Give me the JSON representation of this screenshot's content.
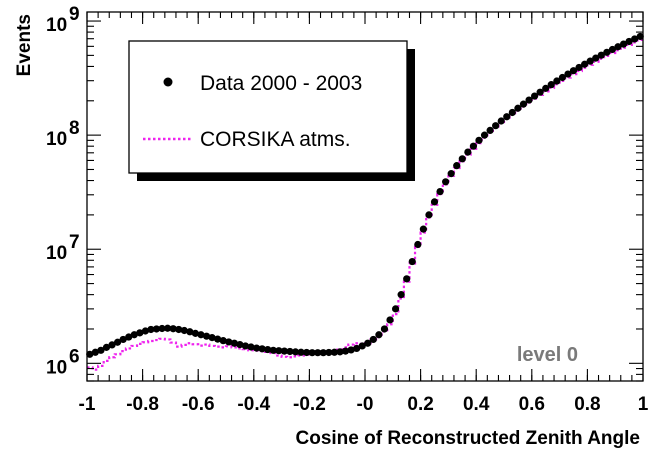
{
  "chart_data": {
    "type": "scatter",
    "xlabel": "Cosine of Reconstructed Zenith Angle",
    "ylabel": "Events",
    "xlim": [
      -1,
      1
    ],
    "ylim": [
      700000,
      1200000000
    ],
    "yscale": "log",
    "grid": false,
    "legend_position": "top-left",
    "x_tick_labels": [
      "-1",
      "-0.8",
      "-0.6",
      "-0.4",
      "-0.2",
      "-0",
      "0.2",
      "0.4",
      "0.6",
      "0.8",
      "1"
    ],
    "y_tick_labels": [
      {
        "value": 1000000,
        "base": "10",
        "exp": "6"
      },
      {
        "value": 10000000,
        "base": "10",
        "exp": "7"
      },
      {
        "value": 100000000,
        "base": "10",
        "exp": "8"
      },
      {
        "value": 1000000000,
        "base": "10",
        "exp": "9"
      }
    ],
    "annotation": "level 0",
    "series": [
      {
        "name": "Data 2000 - 2003",
        "style": "markers",
        "color": "#000000",
        "x": [
          -0.99,
          -0.97,
          -0.95,
          -0.93,
          -0.91,
          -0.89,
          -0.87,
          -0.85,
          -0.83,
          -0.81,
          -0.79,
          -0.77,
          -0.75,
          -0.73,
          -0.71,
          -0.69,
          -0.67,
          -0.65,
          -0.63,
          -0.61,
          -0.59,
          -0.57,
          -0.55,
          -0.53,
          -0.51,
          -0.49,
          -0.47,
          -0.45,
          -0.43,
          -0.41,
          -0.39,
          -0.37,
          -0.35,
          -0.33,
          -0.31,
          -0.29,
          -0.27,
          -0.25,
          -0.23,
          -0.21,
          -0.19,
          -0.17,
          -0.15,
          -0.13,
          -0.11,
          -0.09,
          -0.07,
          -0.05,
          -0.03,
          -0.01,
          0.01,
          0.03,
          0.05,
          0.07,
          0.09,
          0.11,
          0.13,
          0.15,
          0.17,
          0.19,
          0.21,
          0.23,
          0.25,
          0.27,
          0.29,
          0.31,
          0.33,
          0.35,
          0.37,
          0.39,
          0.41,
          0.43,
          0.45,
          0.47,
          0.49,
          0.51,
          0.53,
          0.55,
          0.57,
          0.59,
          0.61,
          0.63,
          0.65,
          0.67,
          0.69,
          0.71,
          0.73,
          0.75,
          0.77,
          0.79,
          0.81,
          0.83,
          0.85,
          0.87,
          0.89,
          0.91,
          0.93,
          0.95,
          0.97,
          0.99
        ],
        "y": [
          1200000,
          1250000,
          1300000,
          1380000,
          1450000,
          1530000,
          1620000,
          1700000,
          1780000,
          1850000,
          1920000,
          1980000,
          2000000,
          2020000,
          2030000,
          2010000,
          1980000,
          1940000,
          1890000,
          1830000,
          1780000,
          1730000,
          1680000,
          1630000,
          1580000,
          1540000,
          1500000,
          1460000,
          1420000,
          1390000,
          1360000,
          1340000,
          1320000,
          1300000,
          1290000,
          1280000,
          1270000,
          1260000,
          1250000,
          1245000,
          1240000,
          1240000,
          1240000,
          1245000,
          1250000,
          1260000,
          1280000,
          1310000,
          1350000,
          1420000,
          1500000,
          1620000,
          1780000,
          2000000,
          2400000,
          3000000,
          4000000,
          5500000,
          7800000,
          11000000,
          15000000,
          20000000,
          26000000,
          32000000,
          39000000,
          46000000,
          54000000,
          62000000,
          71000000,
          80000000,
          90000000,
          100000000,
          110000000,
          121000000,
          133000000,
          145000000,
          158000000,
          172000000,
          187000000,
          203000000,
          220000000,
          238000000,
          257000000,
          277000000,
          298000000,
          320000000,
          343000000,
          367000000,
          392000000,
          418000000,
          445000000,
          473000000,
          502000000,
          532000000,
          563000000,
          595000000,
          628000000,
          662000000,
          697000000,
          733000000
        ]
      },
      {
        "name": "CORSIKA atms.",
        "style": "dotted-step",
        "color": "#ee22ee",
        "x": [
          -0.99,
          -0.97,
          -0.95,
          -0.93,
          -0.91,
          -0.89,
          -0.87,
          -0.85,
          -0.83,
          -0.81,
          -0.79,
          -0.77,
          -0.75,
          -0.73,
          -0.71,
          -0.69,
          -0.67,
          -0.65,
          -0.63,
          -0.61,
          -0.59,
          -0.57,
          -0.55,
          -0.53,
          -0.51,
          -0.49,
          -0.47,
          -0.45,
          -0.43,
          -0.41,
          -0.39,
          -0.37,
          -0.35,
          -0.33,
          -0.31,
          -0.29,
          -0.27,
          -0.25,
          -0.23,
          -0.21,
          -0.19,
          -0.17,
          -0.15,
          -0.13,
          -0.11,
          -0.09,
          -0.07,
          -0.05,
          -0.03,
          -0.01,
          0.01,
          0.03,
          0.05,
          0.07,
          0.09,
          0.11,
          0.13,
          0.15,
          0.17,
          0.19,
          0.21,
          0.23,
          0.25,
          0.27,
          0.29,
          0.31,
          0.33,
          0.35,
          0.37,
          0.39,
          0.41,
          0.43,
          0.45,
          0.47,
          0.49,
          0.51,
          0.53,
          0.55,
          0.57,
          0.59,
          0.61,
          0.63,
          0.65,
          0.67,
          0.69,
          0.71,
          0.73,
          0.75,
          0.77,
          0.79,
          0.81,
          0.83,
          0.85,
          0.87,
          0.89,
          0.91,
          0.93,
          0.95,
          0.97,
          0.99
        ],
        "y": [
          920000,
          880000,
          950000,
          1050000,
          1130000,
          1200000,
          1280000,
          1350000,
          1420000,
          1480000,
          1530000,
          1570000,
          1600000,
          1640000,
          1620000,
          1520000,
          1400000,
          1450000,
          1500000,
          1470000,
          1430000,
          1460000,
          1420000,
          1400000,
          1380000,
          1410000,
          1380000,
          1350000,
          1330000,
          1300000,
          1290000,
          1280000,
          1260000,
          1230000,
          1170000,
          1140000,
          1130000,
          1150000,
          1170000,
          1190000,
          1200000,
          1220000,
          1230000,
          1250000,
          1280000,
          1320000,
          1380000,
          1460000,
          1500000,
          1480000,
          1500000,
          1620000,
          1700000,
          1900000,
          2200000,
          2700000,
          3700000,
          5200000,
          7500000,
          10500000,
          14000000,
          19000000,
          24500000,
          30500000,
          37000000,
          44000000,
          51500000,
          59000000,
          67500000,
          76000000,
          85000000,
          95000000,
          105000000,
          116000000,
          127000000,
          139000000,
          151000000,
          164000000,
          178000000,
          193000000,
          209000000,
          225000000,
          242000000,
          260000000,
          279000000,
          299000000,
          320000000,
          342000000,
          365000000,
          389000000,
          414000000,
          440000000,
          467000000,
          495000000,
          524000000,
          554000000,
          585000000,
          617000000,
          650000000,
          684000000
        ]
      }
    ]
  }
}
